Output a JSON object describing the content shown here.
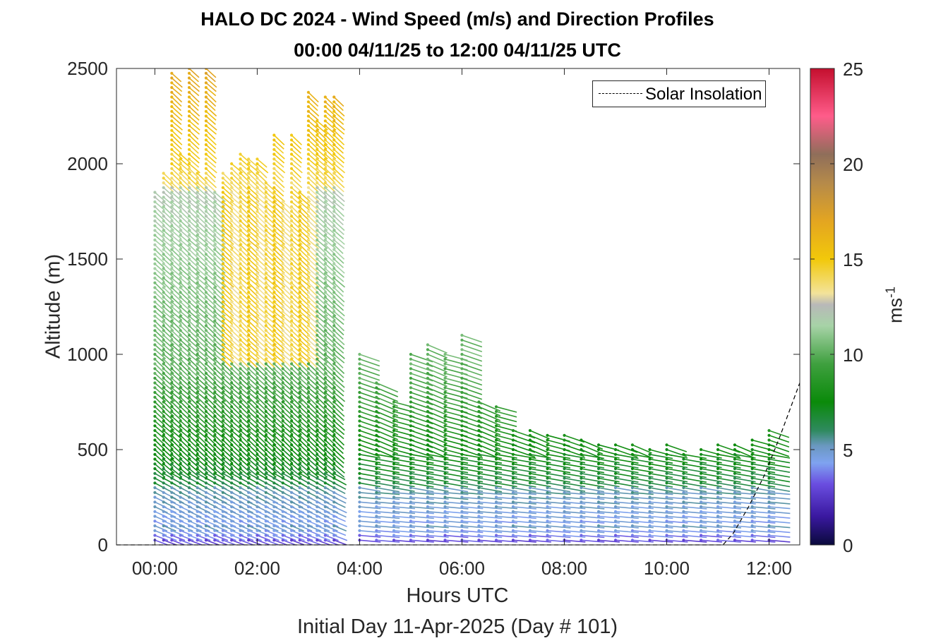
{
  "chart_data": {
    "type": "wind-barb-profile",
    "title": "HALO DC 2024 - Wind Speed (m/s) and Direction Profiles",
    "subtitle": "00:00 04/11/25 to 12:00 04/11/25  UTC",
    "xlabel": "Hours UTC",
    "ylabel": "Altitude (m)",
    "subcaption": "Initial Day 11-Apr-2025 (Day # 101)",
    "xlim": [
      -0.75,
      12.6
    ],
    "ylim": [
      0,
      2500
    ],
    "x_ticks": [
      0,
      2,
      4,
      6,
      8,
      10,
      12
    ],
    "x_tick_labels": [
      "00:00",
      "02:00",
      "04:00",
      "06:00",
      "08:00",
      "10:00",
      "12:00"
    ],
    "y_ticks": [
      0,
      500,
      1000,
      1500,
      2000,
      2500
    ],
    "y_tick_labels": [
      "0",
      "500",
      "1000",
      "1500",
      "2000",
      "2500"
    ],
    "colorbar": {
      "label": "ms",
      "label_exponent": "-1",
      "range": [
        0,
        25
      ],
      "ticks": [
        0,
        5,
        10,
        15,
        20,
        25
      ],
      "tick_labels": [
        "0",
        "5",
        "10",
        "15",
        "20",
        "25"
      ],
      "stops": [
        {
          "v": 0,
          "color": "#0a0a3c"
        },
        {
          "v": 1.5,
          "color": "#3a18a0"
        },
        {
          "v": 3.2,
          "color": "#6a4ee0"
        },
        {
          "v": 4.3,
          "color": "#7fa3f0"
        },
        {
          "v": 5.2,
          "color": "#6a98c0"
        },
        {
          "v": 6.0,
          "color": "#2f8a5f"
        },
        {
          "v": 7.5,
          "color": "#0a8a0a"
        },
        {
          "v": 9.5,
          "color": "#3fa03f"
        },
        {
          "v": 11.5,
          "color": "#a7d3a7"
        },
        {
          "v": 12.6,
          "color": "#b8b8b8"
        },
        {
          "v": 13.2,
          "color": "#f3e39a"
        },
        {
          "v": 15.0,
          "color": "#f2c80a"
        },
        {
          "v": 17.0,
          "color": "#e3a521"
        },
        {
          "v": 19.0,
          "color": "#b58a4a"
        },
        {
          "v": 20.5,
          "color": "#8f6e5a"
        },
        {
          "v": 22.5,
          "color": "#ff5c8a"
        },
        {
          "v": 25.0,
          "color": "#c40f2e"
        }
      ]
    },
    "legend": {
      "label": "Solar Insolation",
      "position": "top-right",
      "style": "dashed"
    },
    "grid": false,
    "profile_hours": [
      0.0,
      0.17,
      0.33,
      0.5,
      0.67,
      0.83,
      1.0,
      1.17,
      1.33,
      1.5,
      1.67,
      1.83,
      2.0,
      2.17,
      2.33,
      2.5,
      2.67,
      2.83,
      3.0,
      3.17,
      3.33,
      3.5,
      4.0,
      4.33,
      4.67,
      5.0,
      5.33,
      5.67,
      6.0,
      6.33,
      6.67,
      7.0,
      7.33,
      7.67,
      8.0,
      8.33,
      8.67,
      9.0,
      9.33,
      9.67,
      10.0,
      10.33,
      10.67,
      11.0,
      11.33,
      11.67,
      12.0
    ],
    "profile_top_m": [
      1870,
      1960,
      2490,
      2050,
      2500,
      1950,
      2500,
      1850,
      1950,
      2000,
      2050,
      2040,
      2040,
      1900,
      2150,
      1800,
      2150,
      1850,
      2380,
      2240,
      2360,
      2370,
      1010,
      870,
      770,
      1010,
      1050,
      1000,
      1120,
      760,
      740,
      620,
      620,
      580,
      580,
      550,
      540,
      540,
      530,
      520,
      540,
      490,
      500,
      530,
      530,
      570,
      600
    ],
    "solar_insolation": {
      "x": [
        -0.75,
        11.1,
        11.3,
        11.6,
        11.9,
        12.2,
        12.6
      ],
      "y": [
        0,
        0,
        60,
        200,
        360,
        560,
        850
      ]
    }
  }
}
